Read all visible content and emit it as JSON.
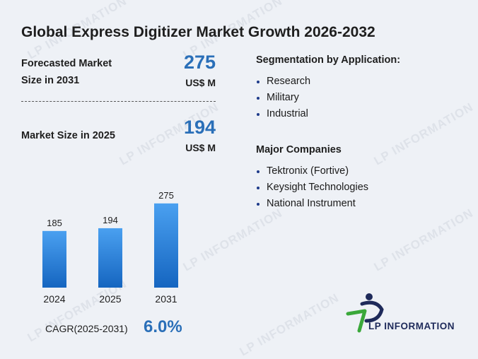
{
  "title": "Global Express Digitizer Market Growth 2026-2032",
  "forecast": {
    "label_line1": "Forecasted Market",
    "label_line2": "Size in 2031",
    "value": "275",
    "unit": "US$ M"
  },
  "current": {
    "label": "Market Size in 2025",
    "value": "194",
    "unit": "US$ M"
  },
  "segmentation": {
    "heading": "Segmentation by Application:",
    "items": [
      "Research",
      "Military",
      "Industrial"
    ]
  },
  "companies": {
    "heading": "Major Companies",
    "items": [
      "Tektronix (Fortive)",
      "Keysight Technologies",
      "National Instrument"
    ]
  },
  "chart_data": {
    "type": "bar",
    "categories": [
      "2024",
      "2025",
      "2031"
    ],
    "values": [
      185,
      194,
      275
    ],
    "ylim": [
      0,
      300
    ]
  },
  "cagr": {
    "label": "CAGR(2025-2031)",
    "value": "6.0%"
  },
  "logo": {
    "text": "LP INFORMATION"
  },
  "watermark": {
    "text": "LP INFORMATION"
  },
  "colors": {
    "accent": "#2a6fb8",
    "bar_top": "#4aa0f0",
    "bar_bottom": "#1565c0",
    "logo_green": "#3aa83a",
    "logo_navy": "#1e2a5a"
  }
}
